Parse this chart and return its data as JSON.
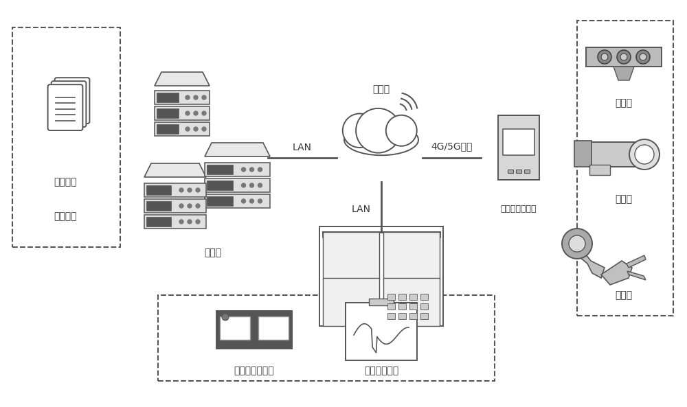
{
  "bg_color": "#ffffff",
  "lc": "#555555",
  "tc": "#333333",
  "fig_w": 10.0,
  "fig_h": 5.93,
  "dpi": 100,
  "labels": {
    "history_data": "历史数据",
    "analysis_algo": "分析算法",
    "server": "服务器",
    "cloud": "云平台",
    "lan1": "LAN",
    "lan2": "LAN",
    "comm": "4G/5G通信",
    "edge": "综合边缘侧设备",
    "sensor": "传感器",
    "camera": "摄像头",
    "robot": "机械臂",
    "state_vis": "状态实时可视化",
    "online_pred": "在线状态预测"
  }
}
